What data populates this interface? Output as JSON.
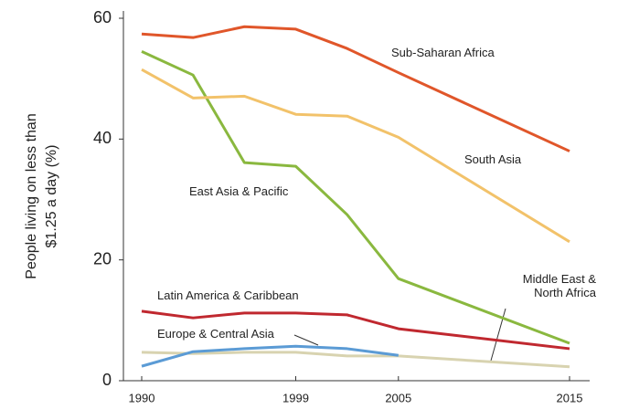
{
  "chart_data": {
    "type": "line",
    "ylabel": [
      "People living on less than",
      "$1.25 a day (%)"
    ],
    "x": [
      1990,
      1993,
      1996,
      1999,
      2002,
      2005,
      2015
    ],
    "xlim": [
      1990,
      2015
    ],
    "xticks": [
      1990,
      1999,
      2005,
      2015
    ],
    "ylim": [
      0,
      60
    ],
    "yticks": [
      0,
      20,
      40,
      60
    ],
    "series": [
      {
        "name": "Sub-Saharan Africa",
        "color": "#e0562a",
        "values": [
          57.4,
          56.8,
          58.6,
          58.2,
          55,
          51,
          38
        ]
      },
      {
        "name": "South Asia",
        "color": "#f2c26a",
        "values": [
          51.5,
          46.8,
          47.1,
          44.1,
          43.8,
          40.3,
          23
        ]
      },
      {
        "name": "East Asia & Pacific",
        "color": "#8ab83f",
        "values": [
          54.5,
          50.6,
          36.1,
          35.5,
          27.5,
          16.9,
          6.2
        ]
      },
      {
        "name": "Latin America & Caribbean",
        "color": "#c0282f",
        "values": [
          11.5,
          10.4,
          11.2,
          11.2,
          10.9,
          8.6,
          5.3
        ]
      },
      {
        "name": "Europe & Central Asia",
        "color": "#5b9bd5",
        "values": [
          2.4,
          4.8,
          5.3,
          5.7,
          5.3,
          4.2,
          null
        ]
      },
      {
        "name": "Middle East & North Africa",
        "color": "#d8d3b0",
        "values": [
          4.7,
          4.5,
          4.7,
          4.7,
          4.1,
          4.1,
          2.3
        ]
      }
    ]
  }
}
